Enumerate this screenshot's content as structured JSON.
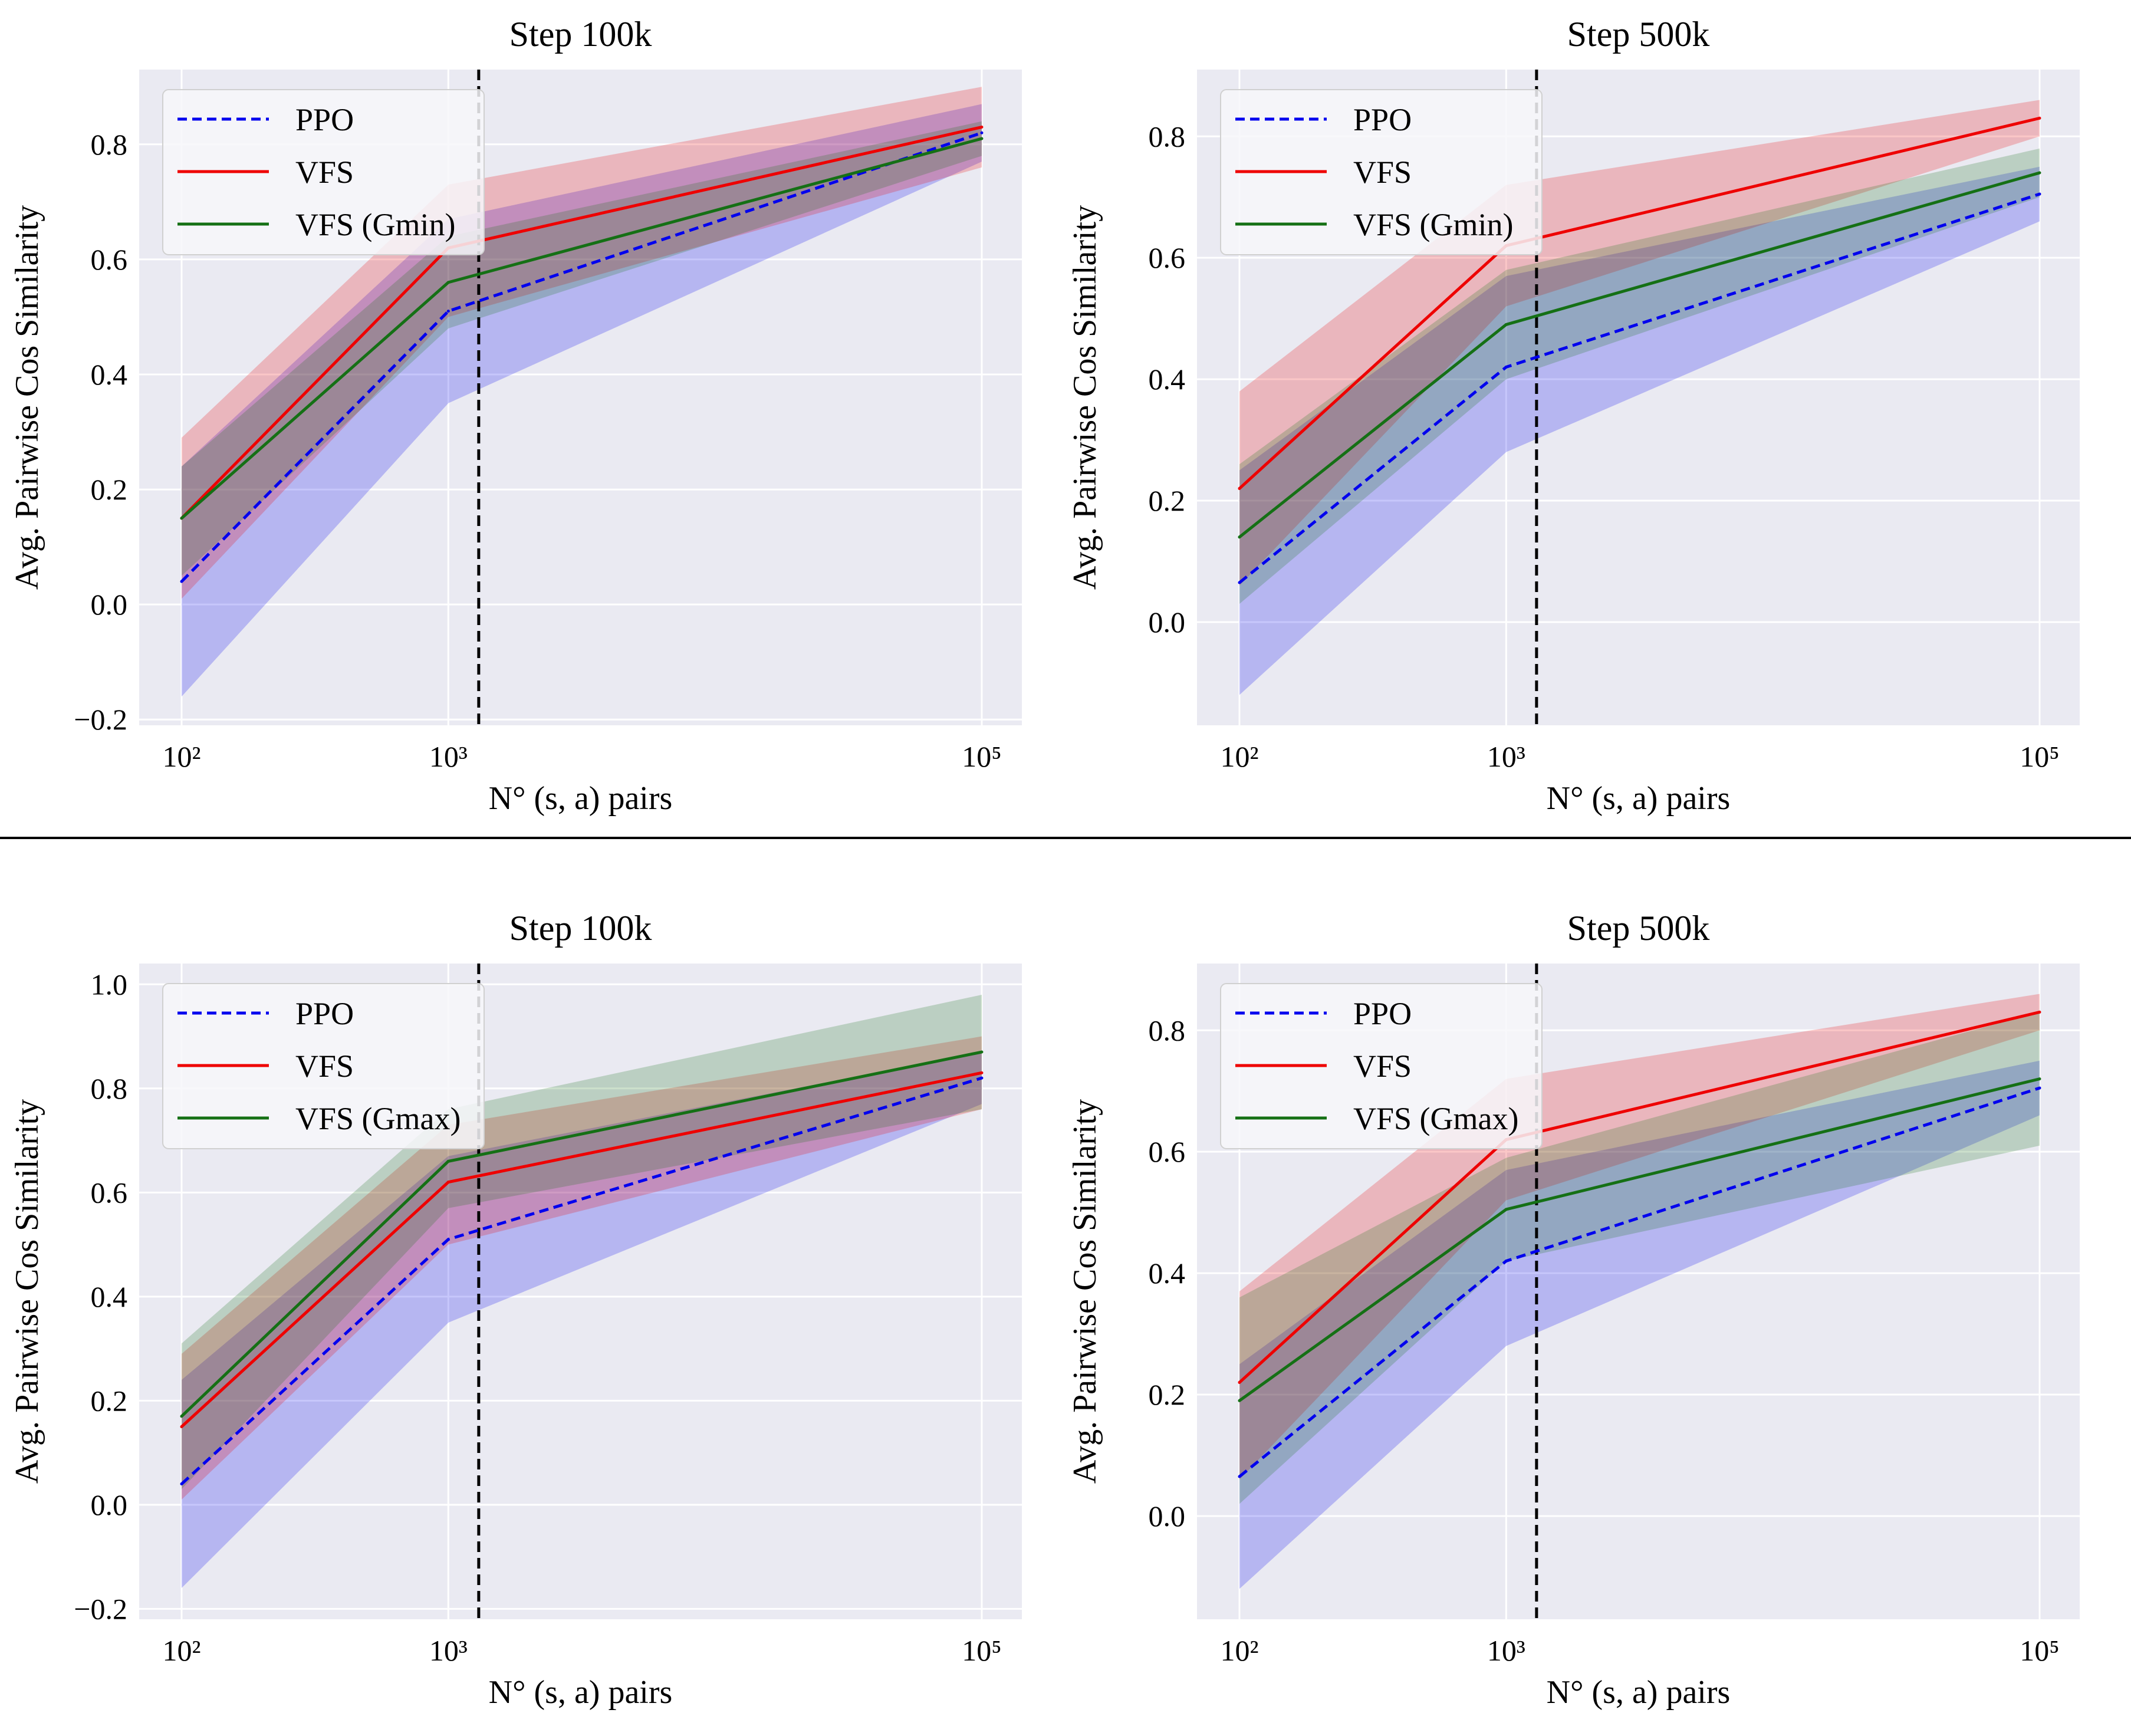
{
  "figure": {
    "colors": {
      "background": "#eaeaf2",
      "grid": "#ffffff",
      "ppo": "#0000ee",
      "vfs": "#ee0000",
      "variant": "#157015",
      "threshold": "#000000"
    }
  },
  "chart_data": [
    {
      "type": "line",
      "title": "Step 100k",
      "xlabel": "N° (s, a) pairs",
      "ylabel": "Avg. Pairwise Cos Similarity",
      "x": [
        100,
        1000,
        100000
      ],
      "x_tick_labels": [
        "10²",
        "10³",
        "10⁵"
      ],
      "yticks": [
        -0.2,
        0.0,
        0.2,
        0.4,
        0.6,
        0.8
      ],
      "y_tick_labels": [
        "−0.2",
        "0.0",
        "0.2",
        "0.4",
        "0.6",
        "0.8"
      ],
      "ylim": [
        -0.21,
        0.93
      ],
      "vline_x": 1300,
      "legend_position": "top-left",
      "series": [
        {
          "name": "PPO",
          "key": "ppo",
          "style": "dashed",
          "values": [
            0.04,
            0.51,
            0.82
          ],
          "lower": [
            -0.16,
            0.35,
            0.77
          ],
          "upper": [
            0.24,
            0.67,
            0.87
          ]
        },
        {
          "name": "VFS",
          "key": "vfs",
          "style": "solid",
          "values": [
            0.15,
            0.62,
            0.83
          ],
          "lower": [
            0.01,
            0.5,
            0.76
          ],
          "upper": [
            0.29,
            0.73,
            0.9
          ]
        },
        {
          "name": "VFS (Gmin)",
          "key": "variant",
          "style": "solid",
          "values": [
            0.15,
            0.56,
            0.81
          ],
          "lower": [
            0.05,
            0.48,
            0.78
          ],
          "upper": [
            0.24,
            0.64,
            0.84
          ]
        }
      ]
    },
    {
      "type": "line",
      "title": "Step 500k",
      "xlabel": "N° (s, a) pairs",
      "ylabel": "Avg. Pairwise Cos Similarity",
      "x": [
        100,
        1000,
        100000
      ],
      "x_tick_labels": [
        "10²",
        "10³",
        "10⁵"
      ],
      "yticks": [
        0.0,
        0.2,
        0.4,
        0.6,
        0.8
      ],
      "y_tick_labels": [
        "0.0",
        "0.2",
        "0.4",
        "0.6",
        "0.8"
      ],
      "ylim": [
        -0.17,
        0.91
      ],
      "vline_x": 1300,
      "legend_position": "top-left",
      "series": [
        {
          "name": "PPO",
          "key": "ppo",
          "style": "dashed",
          "values": [
            0.065,
            0.42,
            0.705
          ],
          "lower": [
            -0.12,
            0.28,
            0.66
          ],
          "upper": [
            0.25,
            0.57,
            0.75
          ]
        },
        {
          "name": "VFS",
          "key": "vfs",
          "style": "solid",
          "values": [
            0.22,
            0.62,
            0.83
          ],
          "lower": [
            0.06,
            0.52,
            0.8
          ],
          "upper": [
            0.38,
            0.72,
            0.86
          ]
        },
        {
          "name": "VFS (Gmin)",
          "key": "variant",
          "style": "solid",
          "values": [
            0.14,
            0.49,
            0.74
          ],
          "lower": [
            0.03,
            0.4,
            0.7
          ],
          "upper": [
            0.26,
            0.58,
            0.78
          ]
        }
      ]
    },
    {
      "type": "line",
      "title": "Step 100k",
      "xlabel": "N° (s, a) pairs",
      "ylabel": "Avg. Pairwise Cos Similarity",
      "x": [
        100,
        1000,
        100000
      ],
      "x_tick_labels": [
        "10²",
        "10³",
        "10⁵"
      ],
      "yticks": [
        -0.2,
        0.0,
        0.2,
        0.4,
        0.6,
        0.8,
        1.0
      ],
      "y_tick_labels": [
        "−0.2",
        "0.0",
        "0.2",
        "0.4",
        "0.6",
        "0.8",
        "1.0"
      ],
      "ylim": [
        -0.22,
        1.04
      ],
      "vline_x": 1300,
      "legend_position": "top-left",
      "series": [
        {
          "name": "PPO",
          "key": "ppo",
          "style": "dashed",
          "values": [
            0.04,
            0.51,
            0.82
          ],
          "lower": [
            -0.16,
            0.35,
            0.77
          ],
          "upper": [
            0.24,
            0.67,
            0.87
          ]
        },
        {
          "name": "VFS",
          "key": "vfs",
          "style": "solid",
          "values": [
            0.15,
            0.62,
            0.83
          ],
          "lower": [
            0.01,
            0.5,
            0.76
          ],
          "upper": [
            0.29,
            0.73,
            0.9
          ]
        },
        {
          "name": "VFS (Gmax)",
          "key": "variant",
          "style": "solid",
          "values": [
            0.17,
            0.66,
            0.87
          ],
          "lower": [
            0.03,
            0.57,
            0.76
          ],
          "upper": [
            0.31,
            0.76,
            0.98
          ]
        }
      ]
    },
    {
      "type": "line",
      "title": "Step 500k",
      "xlabel": "N° (s, a) pairs",
      "ylabel": "Avg. Pairwise Cos Similarity",
      "x": [
        100,
        1000,
        100000
      ],
      "x_tick_labels": [
        "10²",
        "10³",
        "10⁵"
      ],
      "yticks": [
        0.0,
        0.2,
        0.4,
        0.6,
        0.8
      ],
      "y_tick_labels": [
        "0.0",
        "0.2",
        "0.4",
        "0.6",
        "0.8"
      ],
      "ylim": [
        -0.17,
        0.91
      ],
      "vline_x": 1300,
      "legend_position": "top-left",
      "series": [
        {
          "name": "PPO",
          "key": "ppo",
          "style": "dashed",
          "values": [
            0.065,
            0.42,
            0.705
          ],
          "lower": [
            -0.12,
            0.28,
            0.66
          ],
          "upper": [
            0.25,
            0.57,
            0.75
          ]
        },
        {
          "name": "VFS",
          "key": "vfs",
          "style": "solid",
          "values": [
            0.22,
            0.62,
            0.83
          ],
          "lower": [
            0.06,
            0.52,
            0.8
          ],
          "upper": [
            0.37,
            0.72,
            0.86
          ]
        },
        {
          "name": "VFS (Gmax)",
          "key": "variant",
          "style": "solid",
          "values": [
            0.19,
            0.505,
            0.72
          ],
          "lower": [
            0.02,
            0.42,
            0.61
          ],
          "upper": [
            0.36,
            0.59,
            0.83
          ]
        }
      ]
    }
  ]
}
